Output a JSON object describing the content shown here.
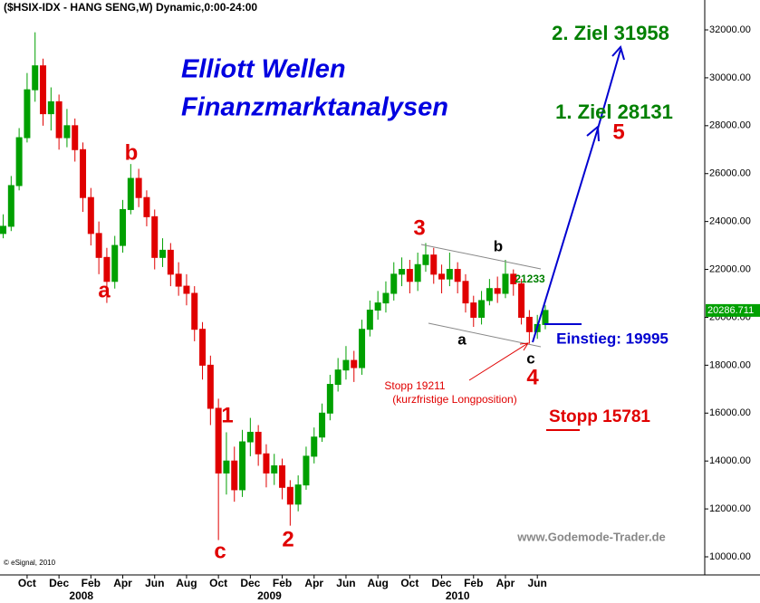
{
  "chart_data": {
    "type": "candlestick",
    "title": "($HSIX-IDX - HANG SENG,W) Dynamic,0:00-24:00",
    "headline": [
      "Elliott Wellen",
      "Finanzmarktanalysen"
    ],
    "x": [
      -1.5,
      -1,
      -0.5,
      0,
      0.5,
      1,
      1.5,
      2,
      2.5,
      3,
      3.5,
      4,
      4.5,
      5,
      5.5,
      6,
      6.5,
      7,
      7.5,
      8,
      8.5,
      9,
      9.5,
      10,
      10.5,
      11,
      11.5,
      12,
      12.5,
      13,
      13.5,
      14,
      14.5,
      15,
      15.5,
      16,
      16.5,
      17,
      17.5,
      18,
      18.5,
      19,
      19.5,
      20,
      20.5,
      21,
      21.5,
      22,
      22.5,
      23,
      23.5,
      24,
      24.5,
      25,
      25.5,
      26,
      26.5,
      27,
      27.5,
      28,
      28.5,
      29,
      29.5,
      30,
      30.5,
      31,
      31.5,
      32,
      32.5
    ],
    "open": [
      23500,
      23800,
      25500,
      27500,
      29500,
      30500,
      28500,
      29000,
      27500,
      28000,
      27000,
      25000,
      23500,
      22500,
      21500,
      23000,
      24500,
      25800,
      25000,
      24200,
      22500,
      22800,
      21800,
      21300,
      21000,
      19500,
      18000,
      16200,
      13500,
      14000,
      12800,
      14800,
      15200,
      14300,
      13500,
      13800,
      12900,
      12200,
      13000,
      14200,
      15000,
      16000,
      17200,
      17800,
      18200,
      17900,
      19500,
      20300,
      20600,
      21000,
      21800,
      22000,
      21500,
      22200,
      22600,
      21800,
      21600,
      22000,
      21500,
      20600,
      20000,
      20700,
      21200,
      21000,
      21800,
      21400,
      20000,
      19400,
      19700
    ],
    "high": [
      24300,
      25900,
      27900,
      30200,
      31900,
      30800,
      29600,
      29300,
      28700,
      28300,
      27300,
      25400,
      24000,
      22900,
      23400,
      24900,
      26400,
      26200,
      25300,
      24500,
      23300,
      23100,
      22300,
      21800,
      21300,
      19800,
      18400,
      16600,
      15200,
      14600,
      15300,
      15800,
      15500,
      14700,
      14300,
      14100,
      13200,
      13400,
      14600,
      15400,
      16400,
      17600,
      18300,
      18800,
      18600,
      19900,
      20700,
      21100,
      21500,
      22300,
      22500,
      22400,
      22700,
      23100,
      22900,
      22200,
      22700,
      22300,
      21800,
      20900,
      21100,
      21600,
      21700,
      22400,
      22000,
      21600,
      20300,
      20100,
      20500
    ],
    "low": [
      23300,
      23600,
      25300,
      27300,
      29000,
      28000,
      27800,
      27000,
      27100,
      26500,
      24400,
      23000,
      21800,
      20600,
      21200,
      22700,
      24300,
      24600,
      23800,
      22000,
      22100,
      21300,
      20900,
      20500,
      19000,
      17400,
      15500,
      10700,
      12600,
      12300,
      12500,
      14200,
      13800,
      12900,
      13000,
      12400,
      11300,
      11900,
      12800,
      13900,
      14800,
      15700,
      16900,
      17400,
      17300,
      17600,
      19200,
      19900,
      20200,
      20700,
      21300,
      21000,
      21100,
      21900,
      21400,
      21000,
      21300,
      21000,
      20200,
      19600,
      19700,
      20500,
      20600,
      20800,
      20900,
      19700,
      18900,
      19100,
      19500
    ],
    "close": [
      23800,
      25500,
      27500,
      29500,
      30500,
      28500,
      29000,
      27500,
      28000,
      27000,
      25000,
      23500,
      22500,
      21500,
      23000,
      24500,
      25800,
      25000,
      24200,
      22500,
      22800,
      21800,
      21300,
      21000,
      19500,
      18000,
      16200,
      13500,
      14000,
      12800,
      14800,
      15200,
      14300,
      13500,
      13800,
      12900,
      12200,
      13000,
      14200,
      15000,
      16000,
      17200,
      17800,
      18200,
      17900,
      19500,
      20300,
      20600,
      21000,
      21800,
      22000,
      21500,
      22200,
      22600,
      21800,
      21600,
      22000,
      21500,
      20600,
      20000,
      20700,
      21200,
      21000,
      21800,
      21400,
      20000,
      19400,
      19700,
      20287
    ],
    "up_color": "#00a000",
    "down_color": "#e00000",
    "last_price": 20286.711,
    "xlim": [
      -1.7,
      42.5
    ],
    "ylim": [
      9244,
      33248
    ],
    "xticks": [
      {
        "value": 0,
        "label": "Oct"
      },
      {
        "value": 2,
        "label": "Dec"
      },
      {
        "value": 4,
        "label": "Feb"
      },
      {
        "value": 6,
        "label": "Apr"
      },
      {
        "value": 8,
        "label": "Jun"
      },
      {
        "value": 10,
        "label": "Aug"
      },
      {
        "value": 12,
        "label": "Oct"
      },
      {
        "value": 14,
        "label": "Dec"
      },
      {
        "value": 16,
        "label": "Feb"
      },
      {
        "value": 18,
        "label": "Apr"
      },
      {
        "value": 20,
        "label": "Jun"
      },
      {
        "value": 22,
        "label": "Aug"
      },
      {
        "value": 24,
        "label": "Oct"
      },
      {
        "value": 26,
        "label": "Dec"
      },
      {
        "value": 28,
        "label": "Feb"
      },
      {
        "value": 30,
        "label": "Apr"
      },
      {
        "value": 32,
        "label": "Jun"
      }
    ],
    "year_labels": [
      {
        "value": 3.4,
        "label": "2008"
      },
      {
        "value": 15.2,
        "label": "2009"
      },
      {
        "value": 27,
        "label": "2010"
      }
    ],
    "yticks": [
      {
        "value": 10000,
        "label": "10000.00"
      },
      {
        "value": 12000,
        "label": "12000.00"
      },
      {
        "value": 14000,
        "label": "14000.00"
      },
      {
        "value": 16000,
        "label": "16000.00"
      },
      {
        "value": 18000,
        "label": "18000.00"
      },
      {
        "value": 20000,
        "label": "20000.00"
      },
      {
        "value": 22000,
        "label": "22000.00"
      },
      {
        "value": 24000,
        "label": "24000.00"
      },
      {
        "value": 26000,
        "label": "26000.00"
      },
      {
        "value": 28000,
        "label": "28000.00"
      },
      {
        "value": 30000,
        "label": "30000.00"
      },
      {
        "value": 32000,
        "label": "32000.00"
      }
    ],
    "annotations": [
      "b",
      "a",
      "c",
      "1",
      "2",
      "3",
      "4",
      "5",
      "b",
      "a",
      "c",
      "2. Ziel 31958",
      "1. Ziel 28131",
      "21233",
      "Einstieg: 19995",
      "Stopp 19211",
      "(kurzfristige Longposition)",
      "Stopp 15781",
      "www.Godemode-Trader.de",
      "© eSignal, 2010"
    ]
  }
}
